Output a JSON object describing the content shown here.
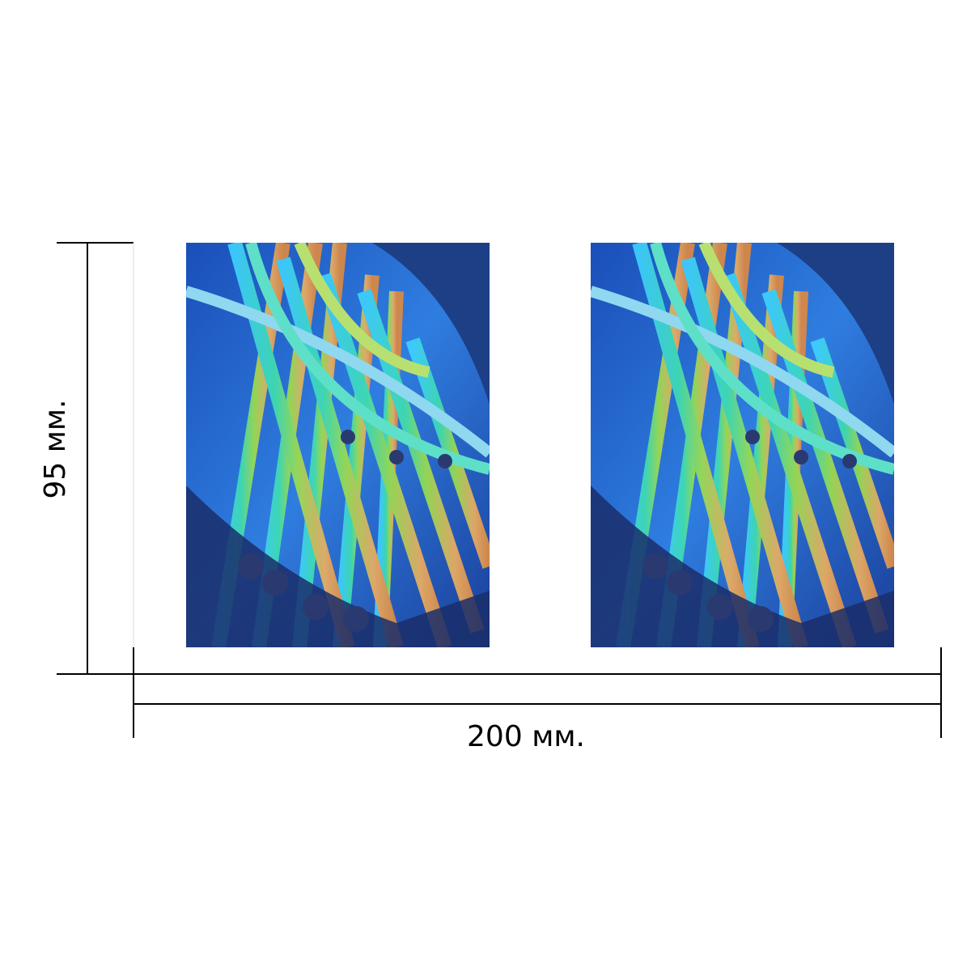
{
  "dimensions": {
    "height": {
      "label": "95 мм."
    },
    "width": {
      "label": "200 мм."
    }
  }
}
